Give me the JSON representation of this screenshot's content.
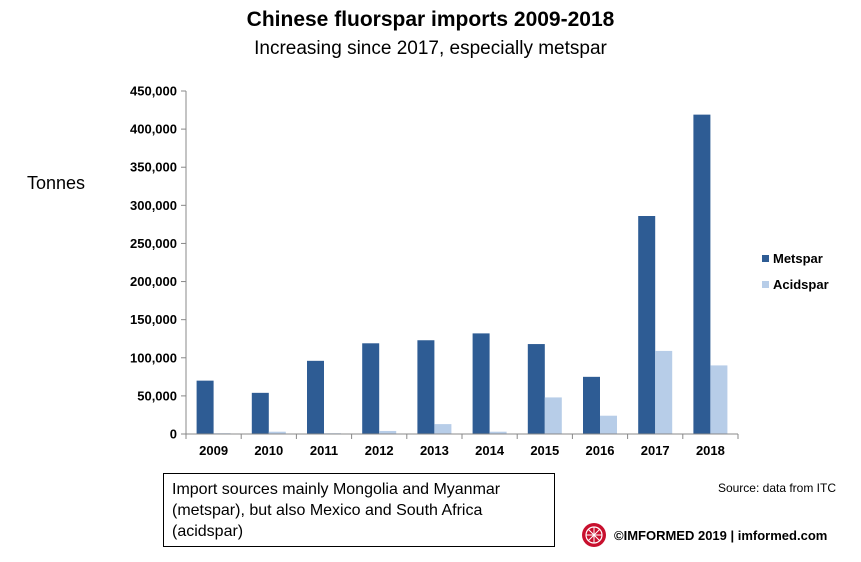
{
  "title": "Chinese fluorspar imports 2009-2018",
  "subtitle": "Increasing since 2017, especially metspar",
  "note": "Import sources mainly Mongolia and Myanmar (metspar), but also Mexico and South Africa (acidspar)",
  "source": "Source: data from ITC",
  "footer": "©IMFORMED 2019 | imformed.com",
  "chart_data": {
    "type": "bar",
    "title": "Chinese fluorspar imports 2009-2018",
    "subtitle": "Increasing since 2017, especially metspar",
    "xlabel": "",
    "ylabel": "Tonnes",
    "ylim": [
      0,
      450000
    ],
    "yticks": [
      0,
      50000,
      100000,
      150000,
      200000,
      250000,
      300000,
      350000,
      400000,
      450000
    ],
    "ytick_labels": [
      "0",
      "50,000",
      "100,000",
      "150,000",
      "200,000",
      "250,000",
      "300,000",
      "350,000",
      "400,000",
      "450,000"
    ],
    "categories": [
      "2009",
      "2010",
      "2011",
      "2012",
      "2013",
      "2014",
      "2015",
      "2016",
      "2017",
      "2018"
    ],
    "series": [
      {
        "name": "Metspar",
        "color": "#2e5c94",
        "values": [
          70000,
          54000,
          96000,
          119000,
          123000,
          132000,
          118000,
          75000,
          286000,
          419000
        ]
      },
      {
        "name": "Acidspar",
        "color": "#b7cde8",
        "values": [
          1000,
          3000,
          1000,
          4000,
          13000,
          3000,
          48000,
          24000,
          109000,
          90000
        ]
      }
    ],
    "grid": false,
    "legend_position": "right"
  }
}
